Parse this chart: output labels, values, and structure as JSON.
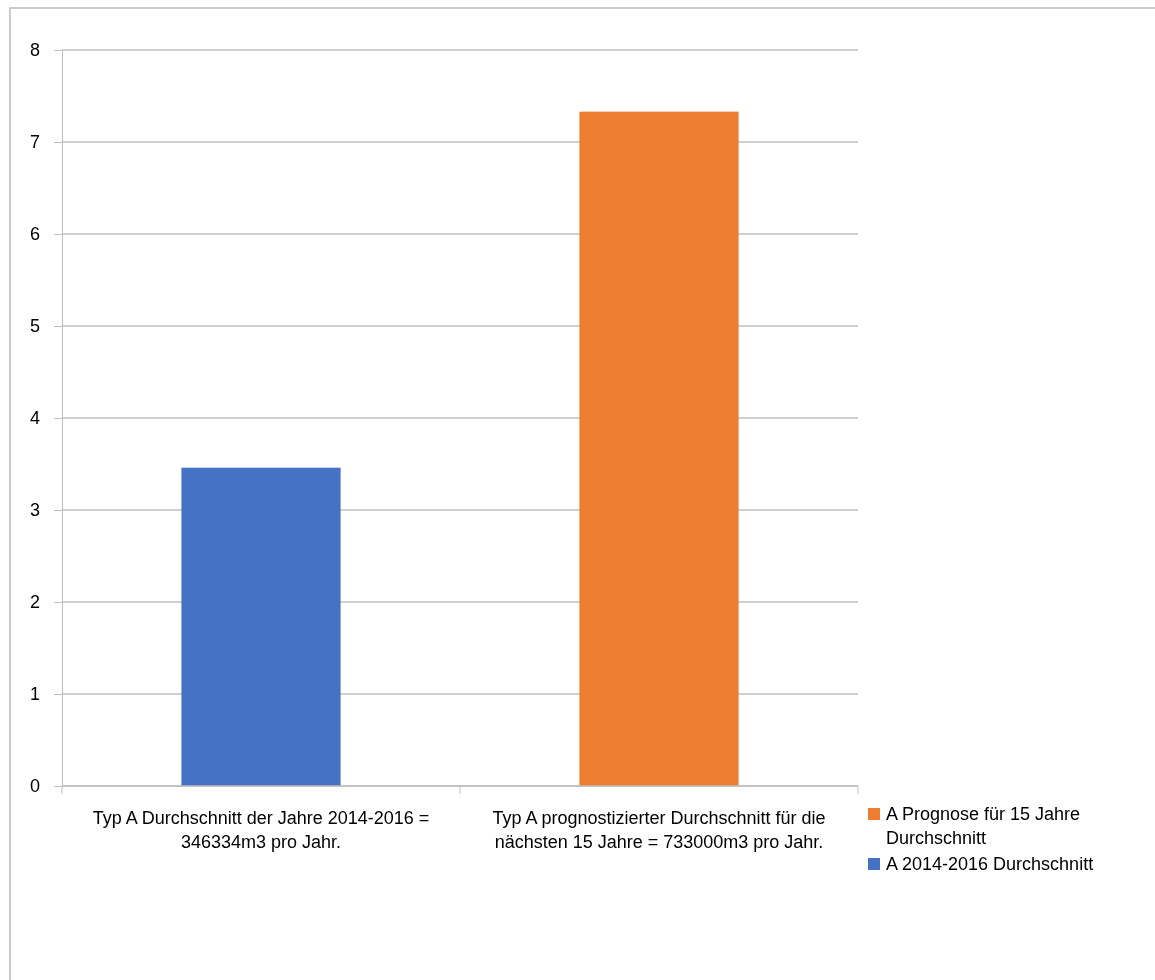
{
  "chart_data": {
    "type": "bar",
    "stacked": true,
    "categories": [
      "Typ A Durchschnitt der Jahre 2014-2016 = 346334m3 pro Jahr.",
      "Typ A prognostizierter Durchschnitt für die nächsten 15 Jahre = 733000m3 pro Jahr."
    ],
    "series": [
      {
        "name": "A 2014-2016 Durchschnitt",
        "color": "#4472c4",
        "values": [
          3.46,
          null
        ]
      },
      {
        "name": "A Prognose für 15 Jahre Durchschnitt",
        "color": "#ed7d31",
        "values": [
          null,
          7.33
        ]
      }
    ],
    "ylim": [
      0,
      8
    ],
    "yticks": [
      0,
      1,
      2,
      3,
      4,
      5,
      6,
      7,
      8
    ],
    "grid": "y",
    "legend": "right"
  }
}
